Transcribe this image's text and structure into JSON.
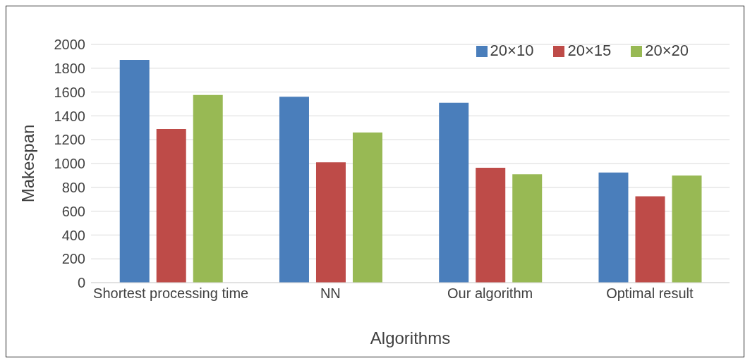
{
  "chart_data": {
    "type": "bar",
    "xlabel": "Algorithms",
    "ylabel": "Makespan",
    "categories": [
      "Shortest processing time",
      "NN",
      "Our algorithm",
      "Optimal result"
    ],
    "series": [
      {
        "name": "20×10",
        "color": "#4a7ebb",
        "values": [
          1870,
          1560,
          1510,
          925
        ]
      },
      {
        "name": "20×15",
        "color": "#be4b48",
        "values": [
          1290,
          1010,
          965,
          725
        ]
      },
      {
        "name": "20×20",
        "color": "#98b954",
        "values": [
          1575,
          1260,
          910,
          900
        ]
      }
    ],
    "ylim": [
      0,
      2000
    ],
    "yticks": [
      0,
      200,
      400,
      600,
      800,
      1000,
      1200,
      1400,
      1600,
      1800,
      2000
    ],
    "grid": "y",
    "legend": "top right"
  }
}
